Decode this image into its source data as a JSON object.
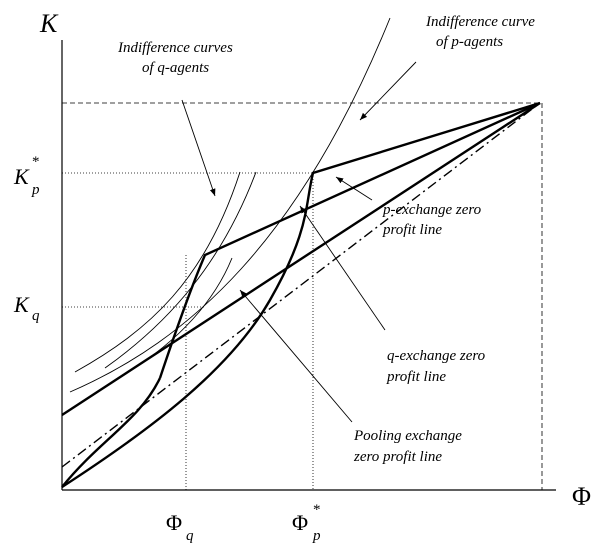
{
  "axes": {
    "y": "K",
    "x": "Φ"
  },
  "y_ticks": [
    {
      "main": "K",
      "sup": "*",
      "sub": "p"
    },
    {
      "main": "K",
      "sub": "q"
    }
  ],
  "x_ticks": [
    {
      "main": "Φ",
      "sub": "q"
    },
    {
      "main": "Φ",
      "sup": "*",
      "sub": "p"
    }
  ],
  "annotations": [
    {
      "lines": [
        "Indifference curves",
        "of q-agents"
      ]
    },
    {
      "lines": [
        "Indifference curve",
        "of p-agents"
      ]
    },
    {
      "lines": [
        "p-exchange zero",
        "profit line"
      ]
    },
    {
      "lines": [
        "q-exchange zero",
        "profit line"
      ]
    },
    {
      "lines": [
        "Pooling exchange",
        "zero profit line"
      ]
    }
  ]
}
